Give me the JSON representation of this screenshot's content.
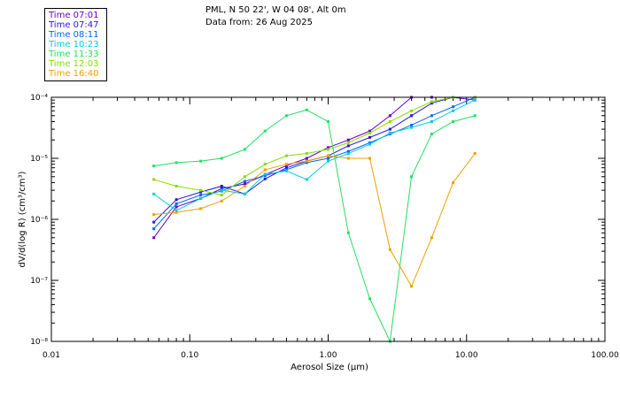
{
  "header": {
    "line1": "PML, N 50 22', W 04 08', Alt 0m",
    "line2": "Data from: 26 Aug 2025"
  },
  "chart_data": {
    "type": "line",
    "x_scale": "log",
    "y_scale": "log",
    "xlim": [
      0.01,
      100
    ],
    "ylim": [
      1e-08,
      0.0001
    ],
    "xlabel": "Aerosol Size (μm)",
    "ylabel": "dV/d(log R) (cm³/cm³)",
    "x_tick_labels": [
      "0.01",
      "0.10",
      "1.00",
      "10.00",
      "100.00"
    ],
    "y_tick_labels": [
      "10⁻⁸",
      "10⁻⁷",
      "10⁻⁶",
      "10⁻⁵",
      "10⁻⁴"
    ],
    "x": [
      0.055,
      0.08,
      0.12,
      0.17,
      0.25,
      0.35,
      0.5,
      0.7,
      1.0,
      1.4,
      2.0,
      2.8,
      4.0,
      5.6,
      8.0,
      11.5
    ],
    "legend": [
      {
        "label": "Time 07:01",
        "color": "#6a00c8"
      },
      {
        "label": "Time 07:47",
        "color": "#2418d8"
      },
      {
        "label": "Time 08:11",
        "color": "#0066ff"
      },
      {
        "label": "Time 10:23",
        "color": "#00ccdd"
      },
      {
        "label": "Time 11:33",
        "color": "#22e060"
      },
      {
        "label": "Time 12:03",
        "color": "#88dd00"
      },
      {
        "label": "Time 16:40",
        "color": "#f0a000"
      }
    ],
    "series": [
      {
        "color": "#6a00c8",
        "values": [
          5e-07,
          1.6e-06,
          2.2e-06,
          3.2e-06,
          3.8e-06,
          5.4e-06,
          7.6e-06,
          1e-05,
          1.5e-05,
          2e-05,
          2.8e-05,
          5e-05,
          0.0001,
          0.0001,
          0.0001,
          9e-05
        ]
      },
      {
        "color": "#2418d8",
        "values": [
          9e-07,
          2.1e-06,
          2.8e-06,
          3.5e-06,
          2.6e-06,
          4.6e-06,
          7e-06,
          9e-06,
          1.1e-05,
          1.6e-05,
          2.2e-05,
          3e-05,
          5e-05,
          8e-05,
          0.0001,
          0.0001
        ]
      },
      {
        "color": "#0066ff",
        "values": [
          7e-07,
          1.8e-06,
          2.5e-06,
          2.9e-06,
          4.2e-06,
          5.2e-06,
          6.5e-06,
          8.5e-06,
          1e-05,
          1.3e-05,
          1.8e-05,
          2.5e-05,
          3.5e-05,
          5e-05,
          7e-05,
          0.0001
        ]
      },
      {
        "color": "#00ccdd",
        "values": [
          2.6e-06,
          1.4e-06,
          2.2e-06,
          3e-06,
          2.6e-06,
          5.5e-06,
          6.2e-06,
          4.5e-06,
          9e-06,
          1.2e-05,
          1.7e-05,
          2.6e-05,
          3.2e-05,
          4e-05,
          6e-05,
          9e-05
        ]
      },
      {
        "color": "#22e060",
        "values": [
          7.5e-06,
          8.5e-06,
          9e-06,
          1e-05,
          1.4e-05,
          2.8e-05,
          5e-05,
          6.2e-05,
          4e-05,
          6e-07,
          5e-08,
          1e-08,
          5e-06,
          2.5e-05,
          4e-05,
          5e-05
        ]
      },
      {
        "color": "#88dd00",
        "values": [
          4.5e-06,
          3.5e-06,
          3e-06,
          2.5e-06,
          5e-06,
          8e-06,
          1.1e-05,
          1.2e-05,
          1.4e-05,
          1.8e-05,
          2.6e-05,
          4e-05,
          6e-05,
          8.5e-05,
          0.0001,
          0.0001
        ]
      },
      {
        "color": "#f0a000",
        "values": [
          1.2e-06,
          1.3e-06,
          1.5e-06,
          2e-06,
          3.5e-06,
          6.5e-06,
          8e-06,
          9e-06,
          1.1e-05,
          1e-05,
          1e-05,
          3.2e-07,
          8e-08,
          5e-07,
          4e-06,
          1.2e-05
        ]
      }
    ]
  }
}
